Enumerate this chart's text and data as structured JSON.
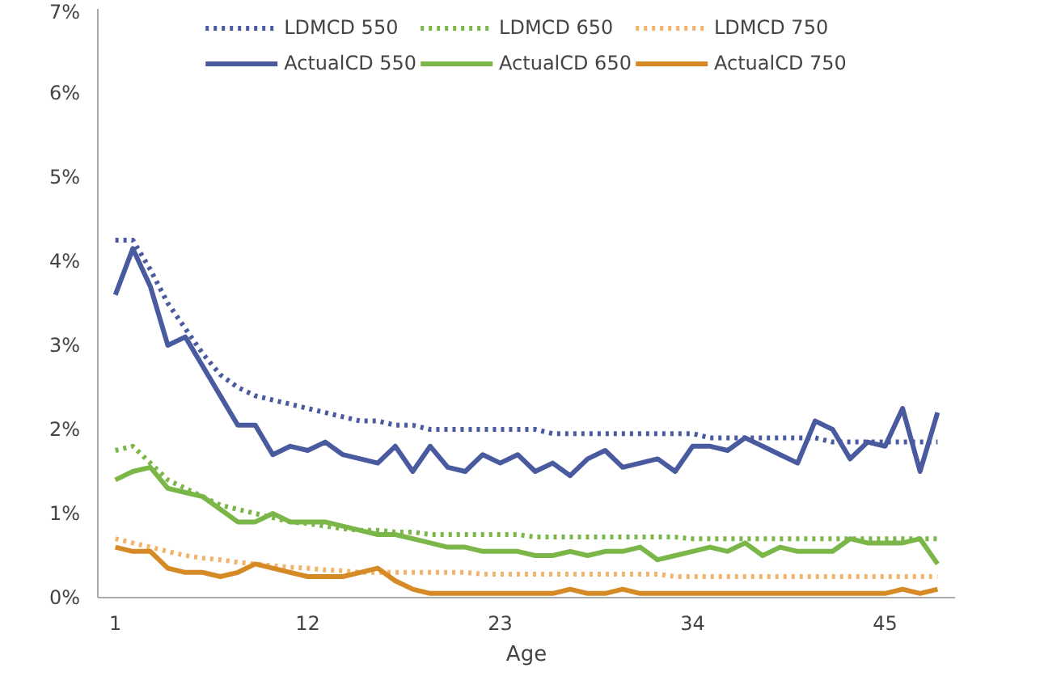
{
  "chart_data": {
    "type": "line",
    "xlabel": "Age",
    "x": [
      1,
      2,
      3,
      4,
      5,
      6,
      7,
      8,
      9,
      10,
      11,
      12,
      13,
      14,
      15,
      16,
      17,
      18,
      19,
      20,
      21,
      22,
      23,
      24,
      25,
      26,
      27,
      28,
      29,
      30,
      31,
      32,
      33,
      34,
      35,
      36,
      37,
      38,
      39,
      40,
      41,
      42,
      43,
      44,
      45,
      46,
      47,
      48
    ],
    "xlim": [
      0,
      49
    ],
    "xticks": [
      1,
      12,
      23,
      34,
      45
    ],
    "ylim": [
      0,
      7
    ],
    "yticks": [
      {
        "value": 0,
        "label": "0%"
      },
      {
        "value": 1,
        "label": "1%"
      },
      {
        "value": 2,
        "label": "2%"
      },
      {
        "value": 3,
        "label": "3%"
      },
      {
        "value": 4,
        "label": "4%"
      },
      {
        "value": 5,
        "label": "5%"
      },
      {
        "value": 6,
        "label": "6%"
      },
      {
        "value": 7,
        "label": "7%"
      }
    ],
    "grid": false,
    "legend": "top",
    "line_style": "solid",
    "marker": "none",
    "series": [
      {
        "name": "LDMCD 550",
        "color": "#4a5a9e",
        "line_style": "dotted",
        "values": [
          4.25,
          4.25,
          3.9,
          3.5,
          3.2,
          2.9,
          2.65,
          2.5,
          2.4,
          2.35,
          2.3,
          2.25,
          2.2,
          2.15,
          2.1,
          2.1,
          2.05,
          2.05,
          2.0,
          2.0,
          2.0,
          2.0,
          2.0,
          2.0,
          2.0,
          1.95,
          1.95,
          1.95,
          1.95,
          1.95,
          1.95,
          1.95,
          1.95,
          1.95,
          1.9,
          1.9,
          1.9,
          1.9,
          1.9,
          1.9,
          1.9,
          1.85,
          1.85,
          1.85,
          1.85,
          1.85,
          1.85,
          1.85
        ]
      },
      {
        "name": "LDMCD 650",
        "color": "#7ab648",
        "line_style": "dotted",
        "values": [
          1.75,
          1.8,
          1.6,
          1.4,
          1.3,
          1.2,
          1.1,
          1.05,
          1.0,
          0.95,
          0.9,
          0.88,
          0.85,
          0.82,
          0.8,
          0.8,
          0.78,
          0.78,
          0.75,
          0.75,
          0.75,
          0.75,
          0.75,
          0.75,
          0.72,
          0.72,
          0.72,
          0.72,
          0.72,
          0.72,
          0.72,
          0.72,
          0.72,
          0.7,
          0.7,
          0.7,
          0.7,
          0.7,
          0.7,
          0.7,
          0.7,
          0.7,
          0.7,
          0.7,
          0.7,
          0.7,
          0.7,
          0.7
        ]
      },
      {
        "name": "LDMCD 750",
        "color": "#f2b46a",
        "line_style": "dotted",
        "values": [
          0.7,
          0.65,
          0.6,
          0.55,
          0.5,
          0.47,
          0.45,
          0.42,
          0.4,
          0.38,
          0.36,
          0.35,
          0.33,
          0.32,
          0.3,
          0.3,
          0.3,
          0.3,
          0.3,
          0.3,
          0.3,
          0.28,
          0.28,
          0.28,
          0.28,
          0.28,
          0.28,
          0.28,
          0.28,
          0.28,
          0.28,
          0.28,
          0.25,
          0.25,
          0.25,
          0.25,
          0.25,
          0.25,
          0.25,
          0.25,
          0.25,
          0.25,
          0.25,
          0.25,
          0.25,
          0.25,
          0.25,
          0.25
        ]
      },
      {
        "name": "ActualCD 550",
        "color": "#4a5a9e",
        "values": [
          3.6,
          4.15,
          3.7,
          3.0,
          3.1,
          2.75,
          2.4,
          2.05,
          2.05,
          1.7,
          1.8,
          1.75,
          1.85,
          1.7,
          1.65,
          1.6,
          1.8,
          1.5,
          1.8,
          1.55,
          1.5,
          1.7,
          1.6,
          1.7,
          1.5,
          1.6,
          1.45,
          1.65,
          1.75,
          1.55,
          1.6,
          1.65,
          1.5,
          1.8,
          1.8,
          1.75,
          1.9,
          1.8,
          1.7,
          1.6,
          2.1,
          2.0,
          1.65,
          1.85,
          1.8,
          2.25,
          1.5,
          2.2
        ]
      },
      {
        "name": "ActualCD 650",
        "color": "#7ab648",
        "values": [
          1.4,
          1.5,
          1.55,
          1.3,
          1.25,
          1.2,
          1.05,
          0.9,
          0.9,
          1.0,
          0.9,
          0.9,
          0.9,
          0.85,
          0.8,
          0.75,
          0.75,
          0.7,
          0.65,
          0.6,
          0.6,
          0.55,
          0.55,
          0.55,
          0.5,
          0.5,
          0.55,
          0.5,
          0.55,
          0.55,
          0.6,
          0.45,
          0.5,
          0.55,
          0.6,
          0.55,
          0.65,
          0.5,
          0.6,
          0.55,
          0.55,
          0.55,
          0.7,
          0.65,
          0.65,
          0.65,
          0.7,
          0.4
        ]
      },
      {
        "name": "ActualCD 750",
        "color": "#d68a25",
        "values": [
          0.6,
          0.55,
          0.55,
          0.35,
          0.3,
          0.3,
          0.25,
          0.3,
          0.4,
          0.35,
          0.3,
          0.25,
          0.25,
          0.25,
          0.3,
          0.35,
          0.2,
          0.1,
          0.05,
          0.05,
          0.05,
          0.05,
          0.05,
          0.05,
          0.05,
          0.05,
          0.1,
          0.05,
          0.05,
          0.1,
          0.05,
          0.05,
          0.05,
          0.05,
          0.05,
          0.05,
          0.05,
          0.05,
          0.05,
          0.05,
          0.05,
          0.05,
          0.05,
          0.05,
          0.05,
          0.1,
          0.05,
          0.1
        ]
      }
    ]
  }
}
